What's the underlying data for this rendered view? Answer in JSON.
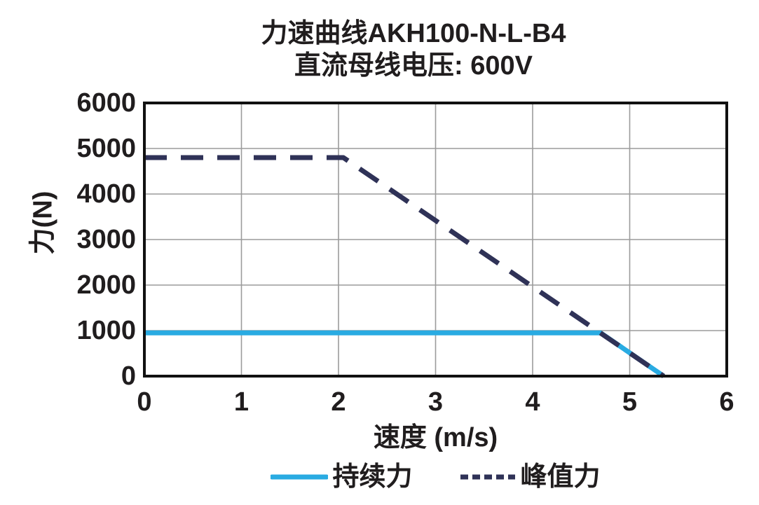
{
  "chart_data": {
    "type": "line",
    "title": "力速曲线AKH100-N-L-B4",
    "subtitle": "直流母线电压: 600V",
    "xlabel": "速度 (m/s)",
    "ylabel": "力(N)",
    "xlim": [
      0,
      6
    ],
    "ylim": [
      0,
      6000
    ],
    "x_ticks": [
      0,
      1,
      2,
      3,
      4,
      5,
      6
    ],
    "y_ticks": [
      0,
      1000,
      2000,
      3000,
      4000,
      5000,
      6000
    ],
    "grid": true,
    "legend_position": "bottom",
    "series": [
      {
        "id": "continuous-force",
        "name": "持续力",
        "style": "solid",
        "color": "#29ABE2",
        "points": [
          [
            0,
            950
          ],
          [
            4.7,
            950
          ],
          [
            5.35,
            0
          ]
        ]
      },
      {
        "id": "peak-force",
        "name": "峰值力",
        "style": "dashed",
        "color": "#2F3257",
        "points": [
          [
            0,
            4800
          ],
          [
            2.05,
            4800
          ],
          [
            5.35,
            0
          ]
        ]
      }
    ]
  },
  "colors": {
    "text": "#201d1e",
    "frame": "#111111",
    "gridline": "#9b9b9b",
    "background": "#ffffff"
  }
}
